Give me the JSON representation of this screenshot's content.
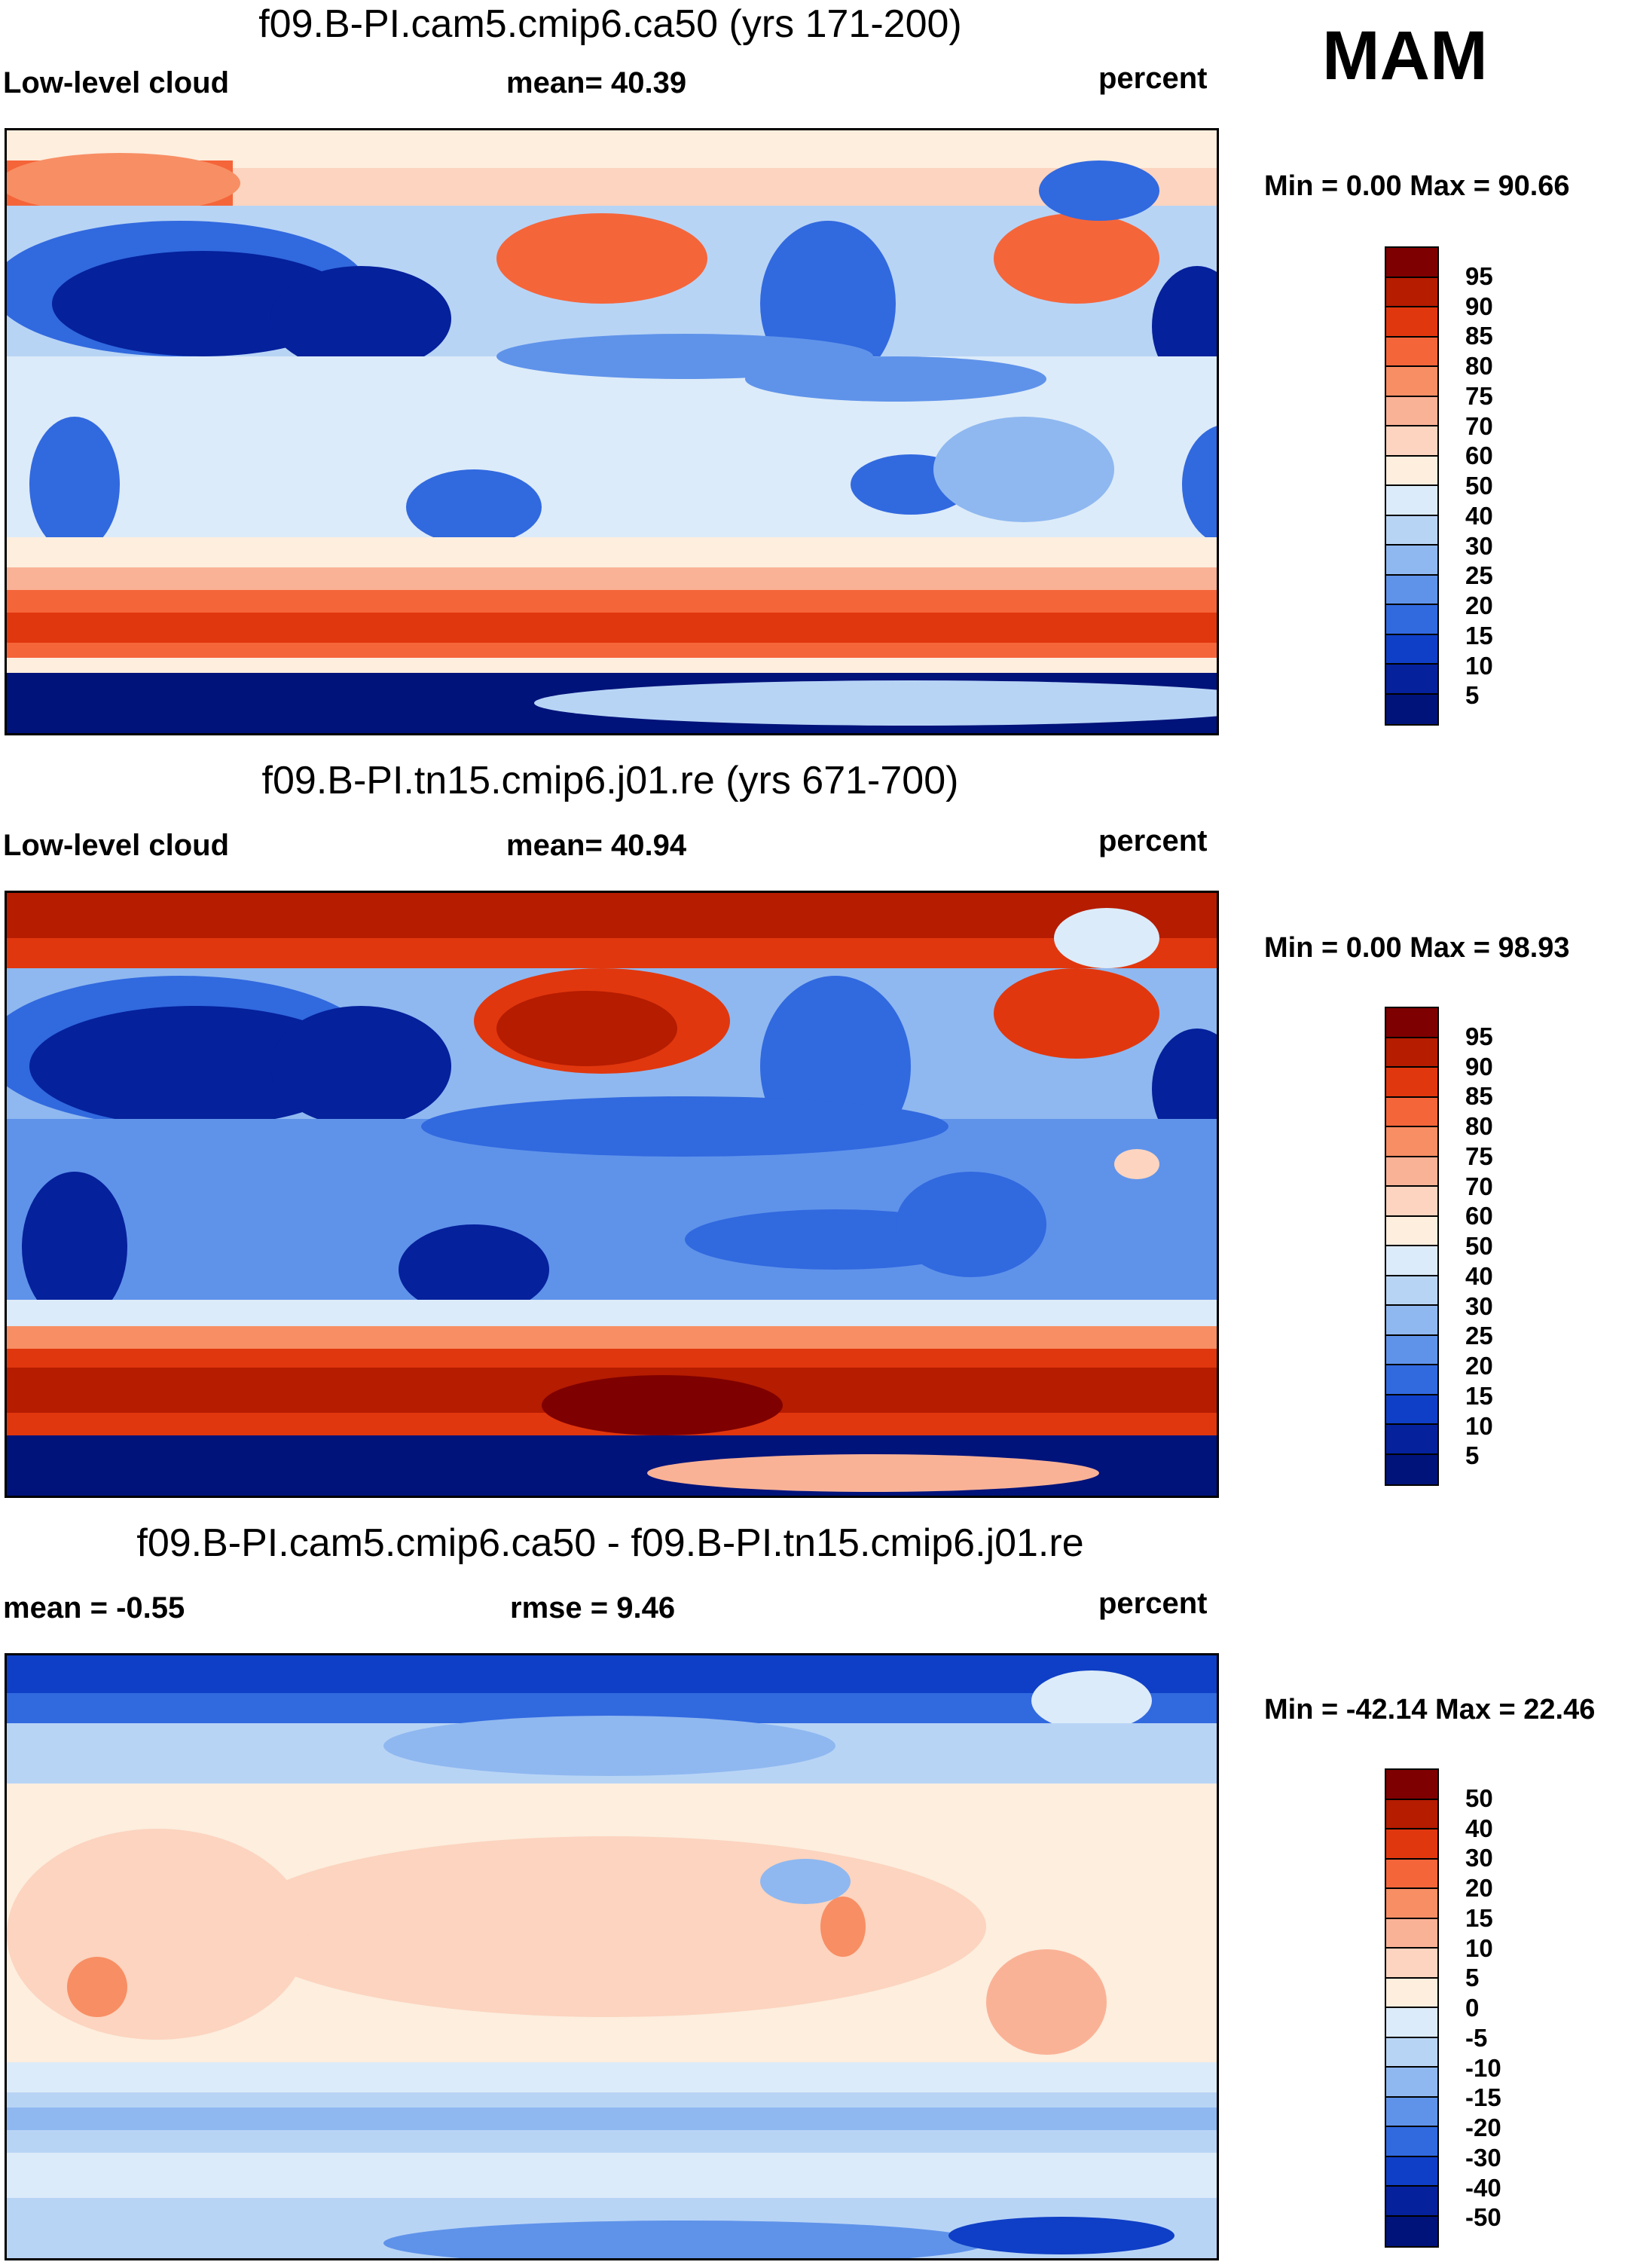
{
  "season": "MAM",
  "colorbar_main": {
    "labels": [
      "95",
      "90",
      "85",
      "80",
      "75",
      "70",
      "60",
      "50",
      "40",
      "30",
      "25",
      "20",
      "15",
      "10",
      "5"
    ],
    "colors": [
      "#7f0000",
      "#b51c00",
      "#e1370e",
      "#f5653a",
      "#f88e64",
      "#fab296",
      "#fcd4bf",
      "#fdeede",
      "#dcebf9",
      "#b8d4f5",
      "#8fb8f0",
      "#5f93ea",
      "#3169df",
      "#0f3fc6",
      "#05219c",
      "#00137a"
    ]
  },
  "colorbar_diff": {
    "labels": [
      "50",
      "40",
      "30",
      "20",
      "15",
      "10",
      "5",
      "0",
      "-5",
      "-10",
      "-15",
      "-20",
      "-30",
      "-40",
      "-50"
    ],
    "colors": [
      "#7f0000",
      "#b51c00",
      "#e1370e",
      "#f5653a",
      "#f88e64",
      "#fab296",
      "#fcd4bf",
      "#fdeede",
      "#dcebf9",
      "#b8d4f5",
      "#8fb8f0",
      "#5f93ea",
      "#3169df",
      "#0f3fc6",
      "#05219c",
      "#00137a"
    ]
  },
  "panels": [
    {
      "title": "f09.B-PI.cam5.cmip6.ca50 (yrs 171-200)",
      "left_label": "Low-level cloud",
      "center_label": "mean=  40.39",
      "right_label": "percent",
      "minmax": "Min =   0.00 Max =  90.66"
    },
    {
      "title": "f09.B-PI.tn15.cmip6.j01.re (yrs 671-700)",
      "left_label": "Low-level cloud",
      "center_label": "mean=  40.94",
      "right_label": "percent",
      "minmax": "Min =   0.00 Max =  98.93"
    },
    {
      "title": "f09.B-PI.cam5.cmip6.ca50 - f09.B-PI.tn15.cmip6.j01.re",
      "left_label": "mean =  -0.55",
      "center_label": "rmse =   9.46",
      "right_label": "percent",
      "minmax": "Min = -42.14 Max =  22.46"
    }
  ]
}
